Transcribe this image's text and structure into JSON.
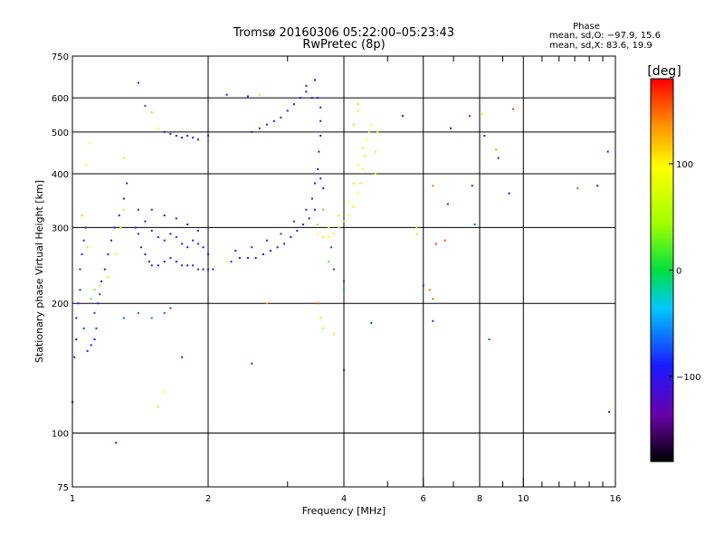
{
  "chart_data": {
    "type": "scatter",
    "title": "Tromsø 20160306 05:22:00–05:23:43",
    "subtitle": "RwPretec (8p)",
    "xlabel": "Frequency [MHz]",
    "ylabel": "Stationary phase Virtual Height [km]",
    "x_scale": "log",
    "y_scale": "log",
    "xlim": [
      1,
      16
    ],
    "ylim": [
      75,
      750
    ],
    "x_ticks": [
      1,
      2,
      4,
      6,
      8,
      10,
      16
    ],
    "x_tick_labels": [
      "1",
      "2",
      "4",
      "6",
      "8",
      "10",
      "16"
    ],
    "x_minor_ticks": [
      3,
      5,
      7,
      9,
      11,
      12,
      13,
      14,
      15
    ],
    "y_ticks": [
      75,
      100,
      200,
      300,
      400,
      500,
      600,
      750
    ],
    "y_tick_labels": [
      "75",
      "100",
      "200",
      "300",
      "400",
      "500",
      "600",
      "750"
    ],
    "grid": true,
    "phase_stats": {
      "heading": "Phase",
      "line_o": "mean, sd,O:  −97.9, 15.6",
      "line_x": "mean, sd,X:   83.6, 19.9"
    },
    "colorbar": {
      "label": "[deg]",
      "range": [
        -180,
        180
      ],
      "ticks": [
        100,
        0,
        -100
      ],
      "tick_labels": [
        "100",
        "0",
        "−100"
      ],
      "colormap": "rainbow (black → violet → blue → cyan → green → yellow → orange → red)"
    },
    "color_axis": "phase (deg)",
    "points": [
      [
        1.0,
        118,
        -100
      ],
      [
        1.01,
        150,
        -100
      ],
      [
        1.02,
        165,
        -100
      ],
      [
        1.02,
        185,
        -100
      ],
      [
        1.03,
        200,
        -100
      ],
      [
        1.04,
        215,
        -100
      ],
      [
        1.04,
        240,
        -100
      ],
      [
        1.05,
        260,
        -100
      ],
      [
        1.06,
        280,
        -100
      ],
      [
        1.07,
        300,
        -100
      ],
      [
        1.06,
        175,
        -90
      ],
      [
        1.08,
        155,
        -100
      ],
      [
        1.1,
        160,
        -100
      ],
      [
        1.12,
        165,
        -100
      ],
      [
        1.13,
        175,
        -100
      ],
      [
        1.12,
        190,
        -90
      ],
      [
        1.14,
        200,
        -100
      ],
      [
        1.15,
        210,
        -100
      ],
      [
        1.16,
        225,
        -100
      ],
      [
        1.18,
        240,
        -100
      ],
      [
        1.2,
        260,
        -100
      ],
      [
        1.22,
        280,
        -100
      ],
      [
        1.24,
        300,
        -100
      ],
      [
        1.27,
        320,
        -100
      ],
      [
        1.3,
        350,
        -100
      ],
      [
        1.32,
        380,
        -100
      ],
      [
        1.1,
        205,
        20
      ],
      [
        1.12,
        215,
        30
      ],
      [
        1.15,
        220,
        40
      ],
      [
        1.2,
        230,
        60
      ],
      [
        1.25,
        260,
        90
      ],
      [
        1.28,
        300,
        100
      ],
      [
        1.3,
        330,
        110
      ],
      [
        1.08,
        270,
        60
      ],
      [
        1.05,
        320,
        120
      ],
      [
        1.07,
        420,
        90
      ],
      [
        1.09,
        470,
        100
      ],
      [
        1.3,
        435,
        60
      ],
      [
        1.38,
        300,
        -100
      ],
      [
        1.4,
        290,
        -100
      ],
      [
        1.42,
        270,
        -100
      ],
      [
        1.45,
        260,
        -100
      ],
      [
        1.48,
        250,
        -110
      ],
      [
        1.5,
        245,
        -100
      ],
      [
        1.55,
        245,
        -100
      ],
      [
        1.6,
        250,
        -110
      ],
      [
        1.65,
        255,
        -100
      ],
      [
        1.7,
        250,
        -100
      ],
      [
        1.75,
        245,
        -100
      ],
      [
        1.8,
        245,
        -110
      ],
      [
        1.85,
        245,
        -100
      ],
      [
        1.9,
        240,
        -100
      ],
      [
        1.95,
        240,
        -100
      ],
      [
        2.0,
        240,
        -110
      ],
      [
        2.05,
        240,
        -100
      ],
      [
        1.4,
        330,
        -100
      ],
      [
        1.45,
        310,
        -100
      ],
      [
        1.5,
        295,
        -100
      ],
      [
        1.55,
        285,
        -100
      ],
      [
        1.6,
        280,
        -100
      ],
      [
        1.65,
        290,
        -100
      ],
      [
        1.7,
        285,
        -90
      ],
      [
        1.75,
        275,
        -100
      ],
      [
        1.8,
        270,
        -100
      ],
      [
        1.85,
        280,
        -100
      ],
      [
        1.9,
        275,
        -100
      ],
      [
        1.95,
        270,
        -100
      ],
      [
        2.0,
        260,
        -100
      ],
      [
        1.5,
        330,
        -100
      ],
      [
        1.6,
        320,
        -100
      ],
      [
        1.7,
        315,
        -100
      ],
      [
        1.8,
        305,
        -100
      ],
      [
        1.9,
        295,
        -100
      ],
      [
        1.3,
        185,
        -80
      ],
      [
        1.4,
        190,
        -80
      ],
      [
        1.5,
        185,
        -70
      ],
      [
        1.6,
        190,
        -80
      ],
      [
        1.65,
        195,
        -90
      ],
      [
        1.6,
        500,
        -100
      ],
      [
        1.65,
        495,
        -100
      ],
      [
        1.7,
        490,
        -100
      ],
      [
        1.75,
        485,
        -100
      ],
      [
        1.8,
        490,
        -100
      ],
      [
        1.85,
        485,
        -100
      ],
      [
        1.9,
        480,
        -100
      ],
      [
        2.0,
        490,
        -100
      ],
      [
        1.4,
        650,
        -110
      ],
      [
        1.45,
        575,
        -80
      ],
      [
        1.5,
        555,
        40
      ],
      [
        1.55,
        510,
        100
      ],
      [
        2.25,
        250,
        -100
      ],
      [
        2.35,
        255,
        -100
      ],
      [
        2.45,
        255,
        -100
      ],
      [
        2.55,
        255,
        -100
      ],
      [
        2.65,
        260,
        -100
      ],
      [
        2.75,
        265,
        -100
      ],
      [
        2.85,
        270,
        -100
      ],
      [
        2.95,
        275,
        -100
      ],
      [
        3.05,
        285,
        -100
      ],
      [
        3.15,
        295,
        -100
      ],
      [
        3.25,
        305,
        -100
      ],
      [
        3.35,
        315,
        -100
      ],
      [
        3.45,
        330,
        -100
      ],
      [
        2.3,
        265,
        -100
      ],
      [
        2.5,
        270,
        -100
      ],
      [
        2.7,
        280,
        -100
      ],
      [
        2.9,
        290,
        -90
      ],
      [
        3.1,
        310,
        -100
      ],
      [
        3.3,
        330,
        -100
      ],
      [
        3.4,
        350,
        -100
      ],
      [
        3.45,
        380,
        -100
      ],
      [
        3.5,
        410,
        -100
      ],
      [
        3.52,
        450,
        -100
      ],
      [
        3.55,
        490,
        -100
      ],
      [
        3.55,
        530,
        -100
      ],
      [
        3.55,
        570,
        -100
      ],
      [
        3.5,
        600,
        -100
      ],
      [
        3.6,
        370,
        -100
      ],
      [
        3.55,
        390,
        -100
      ],
      [
        3.4,
        600,
        -100
      ],
      [
        3.3,
        620,
        -100
      ],
      [
        3.2,
        600,
        -100
      ],
      [
        3.1,
        580,
        -100
      ],
      [
        3.0,
        560,
        -100
      ],
      [
        2.9,
        540,
        -100
      ],
      [
        2.8,
        530,
        -100
      ],
      [
        2.7,
        520,
        -100
      ],
      [
        2.6,
        510,
        -100
      ],
      [
        2.5,
        500,
        -100
      ],
      [
        3.3,
        640,
        -100
      ],
      [
        3.45,
        660,
        -110
      ],
      [
        2.2,
        610,
        -100
      ],
      [
        2.6,
        610,
        110
      ],
      [
        3.5,
        290,
        100
      ],
      [
        3.6,
        285,
        110
      ],
      [
        3.7,
        285,
        100
      ],
      [
        3.8,
        290,
        110
      ],
      [
        3.9,
        300,
        100
      ],
      [
        4.0,
        310,
        110
      ],
      [
        4.1,
        320,
        100
      ],
      [
        4.2,
        335,
        110
      ],
      [
        4.3,
        360,
        100
      ],
      [
        4.35,
        380,
        110
      ],
      [
        4.4,
        410,
        100
      ],
      [
        4.45,
        440,
        110
      ],
      [
        4.5,
        480,
        100
      ],
      [
        4.55,
        500,
        110
      ],
      [
        4.6,
        520,
        100
      ],
      [
        3.7,
        300,
        90
      ],
      [
        3.9,
        320,
        80
      ],
      [
        4.1,
        345,
        100
      ],
      [
        4.2,
        380,
        110
      ],
      [
        4.3,
        420,
        100
      ],
      [
        4.4,
        460,
        110
      ],
      [
        4.7,
        400,
        100
      ],
      [
        4.7,
        450,
        110
      ],
      [
        4.75,
        500,
        100
      ],
      [
        4.2,
        520,
        120
      ],
      [
        4.3,
        560,
        110
      ],
      [
        4.3,
        580,
        120
      ],
      [
        3.5,
        305,
        40
      ],
      [
        3.6,
        330,
        20
      ],
      [
        3.8,
        240,
        -90
      ],
      [
        3.75,
        270,
        -80
      ],
      [
        3.7,
        250,
        20
      ],
      [
        4.0,
        225,
        -90
      ],
      [
        4.0,
        140,
        -110
      ],
      [
        4.6,
        180,
        -90
      ],
      [
        4.0,
        215,
        -60
      ],
      [
        3.5,
        200,
        160
      ],
      [
        2.7,
        200,
        130
      ],
      [
        2.5,
        145,
        -90
      ],
      [
        3.55,
        185,
        110
      ],
      [
        3.6,
        175,
        60
      ],
      [
        3.8,
        170,
        110
      ],
      [
        5.4,
        545,
        -110
      ],
      [
        5.8,
        300,
        110
      ],
      [
        5.8,
        290,
        60
      ],
      [
        6.0,
        220,
        -100
      ],
      [
        6.2,
        215,
        150
      ],
      [
        6.3,
        205,
        150
      ],
      [
        6.3,
        182,
        -110
      ],
      [
        6.4,
        275,
        170
      ],
      [
        6.7,
        280,
        160
      ],
      [
        6.3,
        375,
        150
      ],
      [
        6.8,
        340,
        -100
      ],
      [
        6.9,
        510,
        -100
      ],
      [
        7.6,
        545,
        180
      ],
      [
        7.7,
        375,
        -110
      ],
      [
        7.8,
        305,
        -80
      ],
      [
        8.2,
        490,
        -90
      ],
      [
        8.4,
        165,
        -80
      ],
      [
        8.1,
        550,
        80
      ],
      [
        8.7,
        455,
        140
      ],
      [
        8.8,
        435,
        -100
      ],
      [
        9.3,
        360,
        -110
      ],
      [
        9.5,
        565,
        170
      ],
      [
        13.2,
        370,
        160
      ],
      [
        14.6,
        375,
        -110
      ],
      [
        15.4,
        450,
        -110
      ],
      [
        15.5,
        112,
        -110
      ],
      [
        1.25,
        95,
        -100
      ],
      [
        1.75,
        150,
        -100
      ],
      [
        1.6,
        125,
        100
      ],
      [
        1.55,
        115,
        60
      ],
      [
        2.45,
        605,
        -100
      ],
      [
        2.2,
        250,
        100
      ]
    ]
  }
}
